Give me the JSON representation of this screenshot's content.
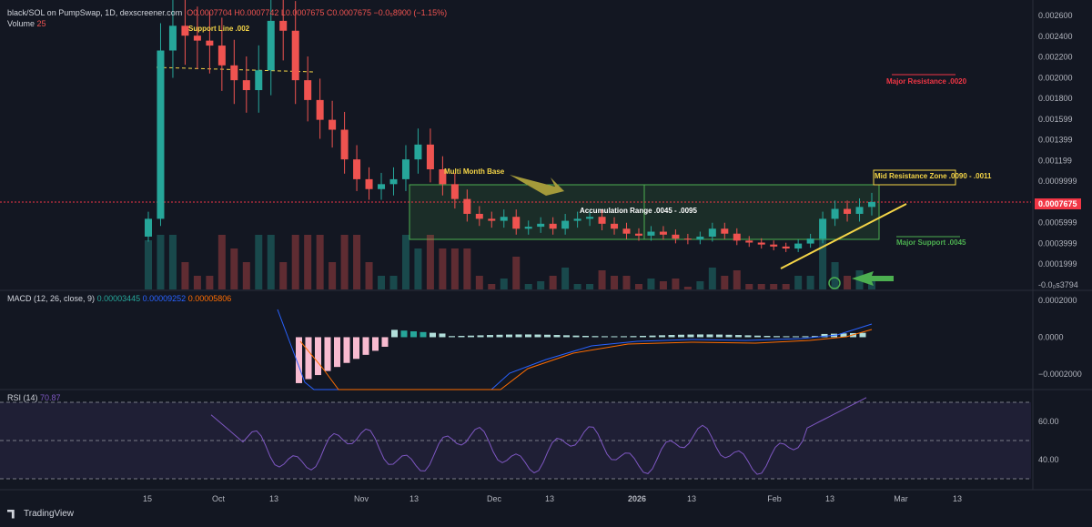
{
  "header": {
    "symbol": "black/SOL on PumpSwap, 1D, dexscreener.com",
    "ohlc": "O0.0007704  H0.0007742  L0.0007675  C0.0007675  −0.0₅8900 (−1.15%)",
    "volume_label": "Volume",
    "volume_value": "25"
  },
  "annotations": {
    "support_line": "Support Line .002",
    "multi_month_base": "Multi Month Base",
    "accumulation_range": "Accumulation Range .0045 - .0095",
    "major_resistance": "Major Resistance .0020",
    "mid_resistance": "Mid Resistance Zone .0090 - .0011",
    "major_support": "Major Support .0045"
  },
  "price_axis": {
    "ticks": [
      "0.002600",
      "0.002400",
      "0.002200",
      "0.002000",
      "0.001800",
      "0.001599",
      "0.001399",
      "0.001199",
      "0.0009999",
      "0.0007675",
      "0.0005999",
      "0.0003999",
      "0.0001999",
      "-0.0₀s3794"
    ],
    "current_price": "0.0007675"
  },
  "macd": {
    "label": "MACD (12, 26, close, 9)",
    "v1": "0.00003445",
    "v2": "0.00009252",
    "v3": "0.00005806",
    "ticks": [
      "0.0002000",
      "0.0000",
      "−0.0002000"
    ]
  },
  "rsi": {
    "label": "RSI (14)",
    "value": "70.87",
    "ticks": [
      "60.00",
      "40.00"
    ]
  },
  "time_axis": [
    "15",
    "Oct",
    "13",
    "Nov",
    "13",
    "Dec",
    "13",
    "2026",
    "13",
    "Feb",
    "13",
    "Mar",
    "13"
  ],
  "brand": "TradingView",
  "colors": {
    "up": "#26a69a",
    "down": "#ef5350",
    "annotation_yellow": "#f5d547",
    "zone_green": "#4caf50",
    "resistance_red": "#f23645",
    "macd_line": "#2962ff",
    "signal_line": "#ff6d00",
    "rsi_line": "#7e57c2"
  },
  "chart_data": {
    "type": "candlestick",
    "interval": "1D",
    "pair": "black/SOL",
    "y_range": [
      -4e-05,
      0.0027
    ],
    "candles_close": [
      0.0006,
      0.0023,
      0.00255,
      0.00245,
      0.0024,
      0.00235,
      0.00215,
      0.002,
      0.0019,
      0.0021,
      0.0026,
      0.0025,
      0.002,
      0.0018,
      0.0016,
      0.0015,
      0.0012,
      0.001,
      0.0009,
      0.00095,
      0.001,
      0.0012,
      0.00135,
      0.0011,
      0.00095,
      0.0008,
      0.00065,
      0.0006,
      0.00058,
      0.00062,
      0.0005,
      0.00052,
      0.00055,
      0.0005,
      0.00058,
      0.0006,
      0.00062,
      0.00055,
      0.0005,
      0.00045,
      0.00043,
      0.00047,
      0.00044,
      0.0004,
      0.00039,
      0.00042,
      0.0005,
      0.00045,
      0.00038,
      0.00036,
      0.00034,
      0.00032,
      0.0003,
      0.00035,
      0.0004,
      0.0006,
      0.0007,
      0.00065,
      0.00072,
      0.00077
    ],
    "macd_range": [
      -0.00028,
      0.00025
    ],
    "rsi_range": [
      25,
      75
    ],
    "rsi_last": 70.87
  }
}
